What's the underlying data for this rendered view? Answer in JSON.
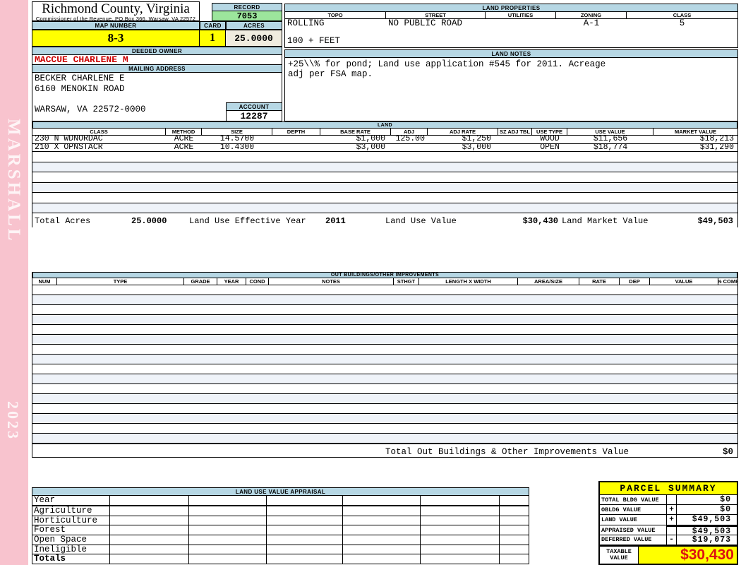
{
  "colors": {
    "sidebar_pink": "#f8c3ce",
    "header_blue": "#b6d7e4",
    "record_green": "#9ce59c",
    "highlight_yellow": "#ffff00",
    "acres_beige": "#f0ecdf",
    "owner_red": "#cc0000",
    "taxable_red": "#dd1111",
    "row_alt": "#eff3f9"
  },
  "sidebar": {
    "name": "MARSHALL",
    "year": "2023"
  },
  "header": {
    "county": "Richmond County, Virginia",
    "commissioner": "Commissioner of the Revenue, PO Box 366, Warsaw, VA 22572",
    "record_label": "RECORD",
    "record_value": "7053",
    "map_number_label": "MAP NUMBER",
    "map_number_value": "8-3",
    "card_label": "CARD",
    "card_value": "1",
    "acres_label": "ACRES",
    "acres_value": "25.0000",
    "deeded_owner_label": "DEEDED OWNER",
    "deeded_owner_value": "MACCUE CHARLENE M",
    "mailing_address_label": "MAILING ADDRESS",
    "mailing_address_lines": [
      "BECKER CHARLENE E",
      "6160 MENOKIN ROAD",
      "WARSAW, VA 22572-0000"
    ],
    "account_label": "ACCOUNT",
    "account_value": "12287"
  },
  "land_properties": {
    "title": "LAND PROPERTIES",
    "columns": [
      "TOPO",
      "STREET",
      "UTILITIES",
      "ZONING",
      "CLASS"
    ],
    "values": [
      "ROLLING",
      "NO PUBLIC ROAD",
      "",
      "A-1",
      "5"
    ],
    "extra": "100 + FEET"
  },
  "land_notes": {
    "title": "LAND NOTES",
    "lines": [
      "+25\\\\% for pond; Land use application #545 for 2011. Acreage",
      "adj per FSA map."
    ]
  },
  "land_table": {
    "title": "LAND",
    "columns": [
      "CLASS",
      "METHOD",
      "SIZE",
      "DEPTH",
      "BASE RATE",
      "ADJ",
      "ADJ RATE",
      "SZ ADJ TBL",
      "USE TYPE",
      "USE VALUE",
      "MARKET VALUE"
    ],
    "rows": [
      [
        "230 N WDNORDAC",
        "ACRE",
        "14.5700",
        "",
        "$1,000",
        "125.00",
        "$1,250",
        "",
        "WOOD",
        "$11,656",
        "$18,213"
      ],
      [
        "210 X OPNSTACR",
        "ACRE",
        "10.4300",
        "",
        "$3,000",
        "",
        "$3,000",
        "",
        "OPEN",
        "$18,774",
        "$31,290"
      ]
    ],
    "empty_row_count": 6,
    "totals": {
      "total_acres_label": "Total Acres",
      "total_acres": "25.0000",
      "effective_year_label": "Land Use Effective Year",
      "effective_year": "2011",
      "use_value_label": "Land Use Value",
      "use_value": "$30,430",
      "market_value_label": "Land Market Value",
      "market_value": "$49,503"
    }
  },
  "out_buildings": {
    "title": "OUT BUILDINGS/OTHER IMPROVEMENTS",
    "columns": [
      "NUM",
      "TYPE",
      "GRADE",
      "YEAR",
      "COND",
      "NOTES",
      "STHGT",
      "LENGTH X WIDTH",
      "AREA/SIZE",
      "RATE",
      "DEP",
      "VALUE",
      "% COMP"
    ],
    "empty_row_count": 16,
    "total_label": "Total Out Buildings & Other Improvements Value",
    "total_value": "$0"
  },
  "land_use_appraisal": {
    "title": "LAND USE VALUE APPRAISAL",
    "row_labels": [
      "Year",
      "Agriculture",
      "Horticulture",
      "Forest",
      "Open Space",
      "Ineligible",
      "Totals"
    ],
    "column_count": 6
  },
  "parcel_summary": {
    "title": "PARCEL SUMMARY",
    "rows": [
      {
        "label": "TOTAL BLDG VALUE",
        "op": "",
        "value": "$0"
      },
      {
        "label": "OBLDG VALUE",
        "op": "+",
        "value": "$0"
      },
      {
        "label": "LAND VALUE",
        "op": "+",
        "value": "$49,503"
      },
      {
        "label": "APPRAISED VALUE",
        "op": "",
        "value": "$49,503"
      },
      {
        "label": "DEFERRED VALUE",
        "op": "-",
        "value": "$19,073"
      }
    ],
    "taxable_label": "TAXABLE VALUE",
    "taxable_value": "$30,430"
  }
}
